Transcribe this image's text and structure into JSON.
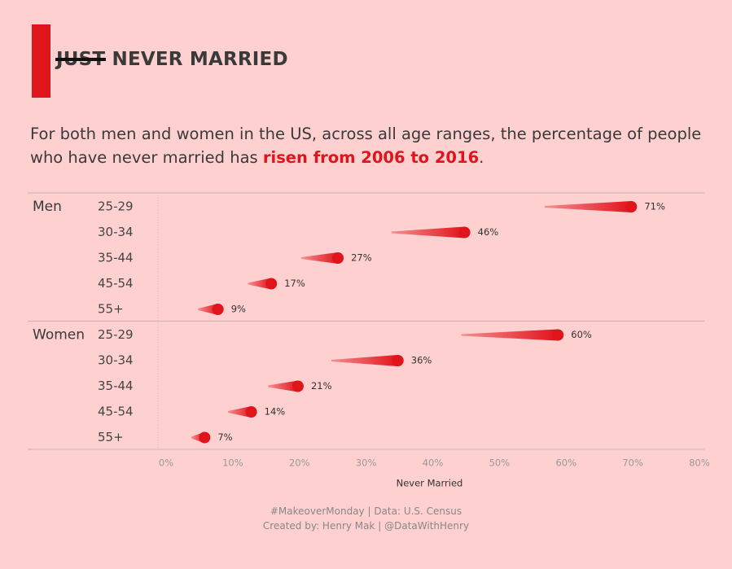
{
  "title": {
    "struck_word": "JUST",
    "rest": " NEVER MARRIED"
  },
  "subtitle": {
    "before": "For both men and women in the US, across all age ranges, the percentage of people who have never married has ",
    "highlight": "risen from 2006 to 2016",
    "after": "."
  },
  "colors": {
    "background": "#ffd0d0",
    "accent": "#e0141b"
  },
  "footer": {
    "line1": "#MakeoverMonday  |  Data: U.S. Census",
    "line2": "Created by: Henry Mak  |  @DataWithHenry"
  },
  "chart_data": {
    "type": "bar",
    "xlabel": "Never Married",
    "xlim": [
      0,
      80
    ],
    "xticks": [
      "0%",
      "10%",
      "20%",
      "30%",
      "40%",
      "50%",
      "60%",
      "70%",
      "80%"
    ],
    "groups": [
      {
        "name": "Men",
        "rows": [
          {
            "age": "25-29",
            "start": 58,
            "end": 71,
            "label": "71%"
          },
          {
            "age": "30-34",
            "start": 35,
            "end": 46,
            "label": "46%"
          },
          {
            "age": "35-44",
            "start": 21.5,
            "end": 27,
            "label": "27%"
          },
          {
            "age": "45-54",
            "start": 13.5,
            "end": 17,
            "label": "17%"
          },
          {
            "age": "55+",
            "start": 6,
            "end": 9,
            "label": "9%"
          }
        ]
      },
      {
        "name": "Women",
        "rows": [
          {
            "age": "25-29",
            "start": 45.5,
            "end": 60,
            "label": "60%"
          },
          {
            "age": "30-34",
            "start": 26,
            "end": 36,
            "label": "36%"
          },
          {
            "age": "35-44",
            "start": 16.5,
            "end": 21,
            "label": "21%"
          },
          {
            "age": "45-54",
            "start": 10.5,
            "end": 14,
            "label": "14%"
          },
          {
            "age": "55+",
            "start": 5,
            "end": 7,
            "label": "7%"
          }
        ]
      }
    ]
  }
}
